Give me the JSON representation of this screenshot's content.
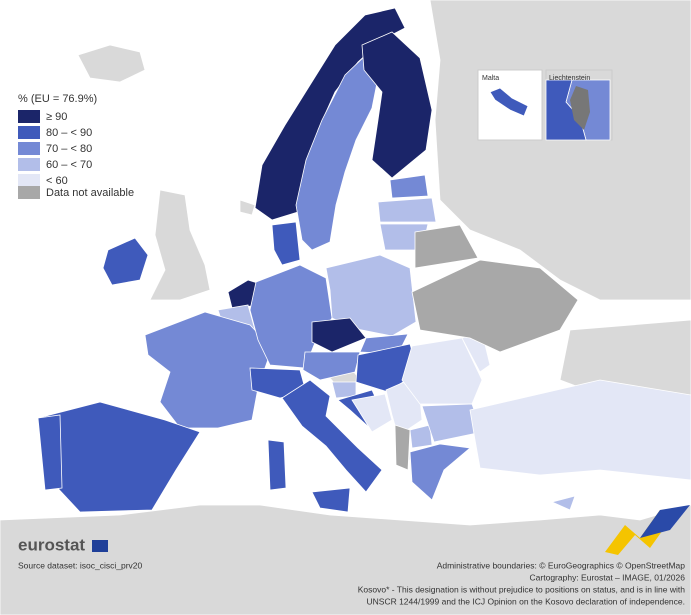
{
  "legend": {
    "title": "% (EU = 76.9%)",
    "items": [
      {
        "label": "≥ 90",
        "color": "#1b2569"
      },
      {
        "label": "80 – < 90",
        "color": "#3f5abb"
      },
      {
        "label": "70 – < 80",
        "color": "#7489d5"
      },
      {
        "label": "60 – < 70",
        "color": "#b2bee9"
      },
      {
        "label": "< 60",
        "color": "#e3e7f6"
      },
      {
        "label": "Data not available",
        "color": "#a8a8a8"
      }
    ]
  },
  "insets": {
    "malta": "Malta",
    "liechtenstein": "Liechtenstein"
  },
  "logo": "eurostat",
  "source": "Source dataset: isoc_cisci_prv20",
  "credits": [
    "Administrative boundaries: © EuroGeographics © OpenStreetMap",
    "Cartography: Eurostat – IMAGE, 01/2026",
    "Kosovo* - This designation is without prejudice to positions on status, and is in line with",
    "UNSCR 1244/1999 and the ICJ Opinion on the Kosovo declaration of independence."
  ]
}
